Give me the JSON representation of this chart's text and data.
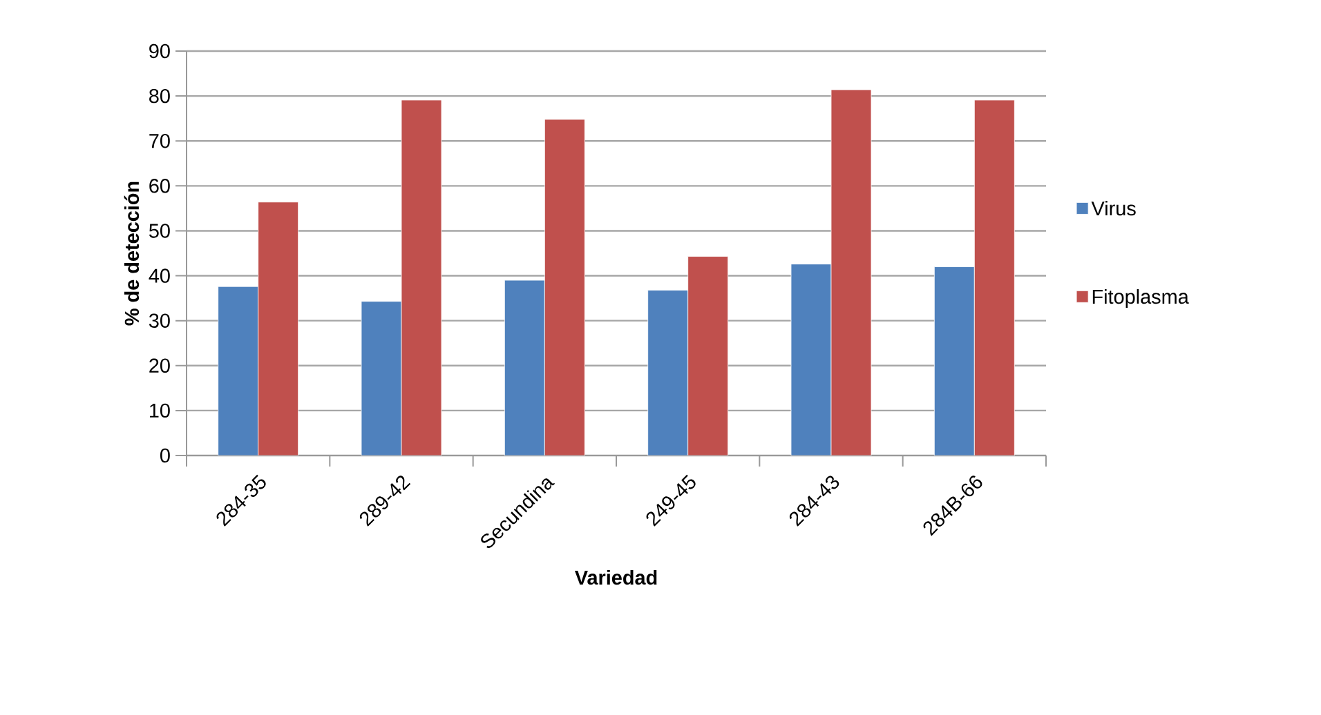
{
  "chart_data": {
    "type": "bar",
    "xlabel": "Variedad",
    "ylabel": "% de detección",
    "categories": [
      "284-35",
      "289-42",
      "Secundina",
      "249-45",
      "284-43",
      "284B-66"
    ],
    "series": [
      {
        "name": "Virus",
        "color": "#4f81bd",
        "values": [
          37.6,
          34.3,
          39.0,
          36.8,
          42.6,
          42.0
        ]
      },
      {
        "name": "Fitoplasma",
        "color": "#c0504d",
        "values": [
          56.4,
          79.1,
          74.8,
          44.3,
          81.4,
          79.1
        ]
      }
    ],
    "ylim": [
      0,
      90
    ],
    "yticks": [
      0,
      10,
      20,
      30,
      40,
      50,
      60,
      70,
      80,
      90
    ],
    "grid": "y",
    "legend": "right"
  }
}
